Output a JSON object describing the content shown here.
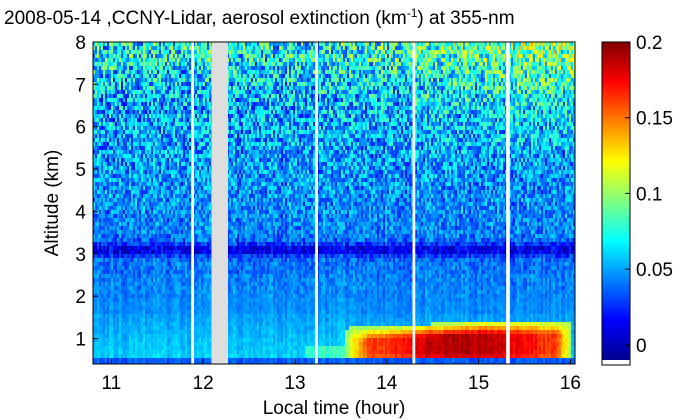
{
  "chart_data": {
    "type": "heatmap",
    "title": {
      "prefix": "2008-05-14 ,CCNY-Lidar, aerosol extinction (km",
      "superscript": "-1",
      "suffix": ") at 355-nm"
    },
    "xlabel": "Local time (hour)",
    "ylabel": "Altitude (km)",
    "xlim": [
      10.8,
      16.05
    ],
    "ylim": [
      0.4,
      8
    ],
    "x_ticks": [
      "11",
      "12",
      "13",
      "14",
      "15",
      "16"
    ],
    "y_ticks": [
      "1",
      "2",
      "3",
      "4",
      "5",
      "6",
      "7",
      "8"
    ],
    "data_gaps_hours": [
      [
        11.87,
        11.9
      ],
      [
        12.09,
        12.27
      ],
      [
        13.22,
        13.25
      ],
      [
        14.28,
        14.31
      ],
      [
        15.3,
        15.34
      ]
    ],
    "features": [
      {
        "name": "aerosol layer",
        "x_range_hours": [
          13.6,
          15.95
        ],
        "altitude_range_km": [
          0.5,
          1.6
        ],
        "peak_extinction": 0.2
      },
      {
        "name": "low extinction band",
        "altitude_km": 3.1
      }
    ],
    "colorbar": {
      "range": [
        -0.01,
        0.2
      ],
      "ticks": [
        "0",
        "0.05",
        "0.1",
        "0.15",
        "0.2"
      ],
      "colormap": "jet"
    }
  }
}
